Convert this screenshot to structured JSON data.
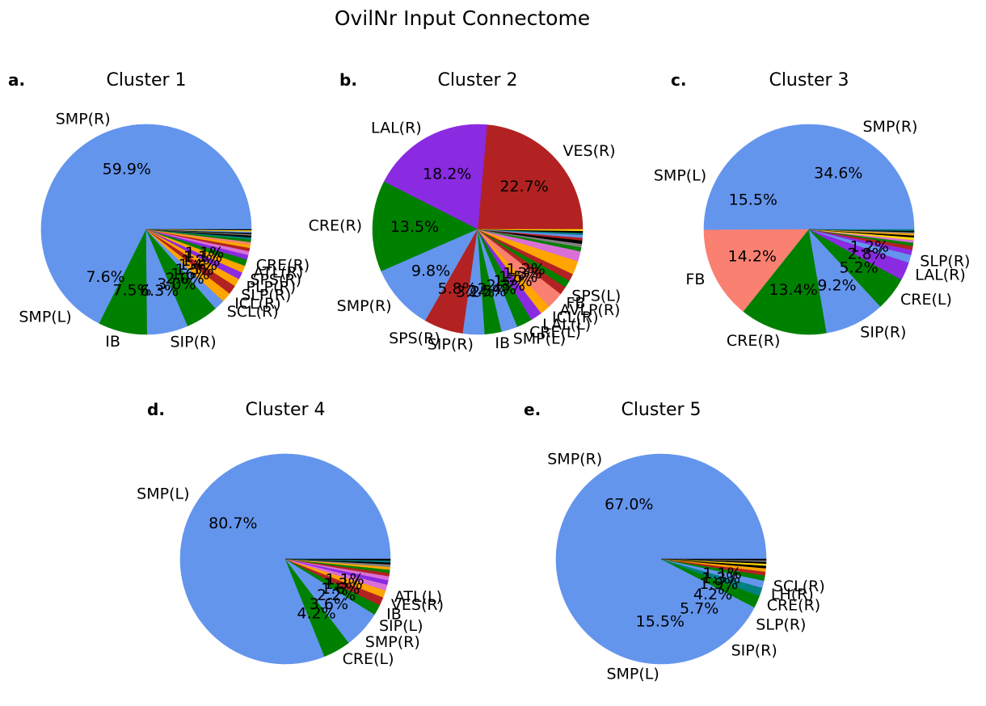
{
  "figure": {
    "title": "OvilNr Input Connectome"
  },
  "chart_data": [
    {
      "type": "pie",
      "panel_label": "a.",
      "title": "Cluster 1",
      "slices": [
        {
          "label": "SMP(R)",
          "value": 59.9,
          "pct_label": "59.9%",
          "color": "#6495ed"
        },
        {
          "label": "SMP(L)",
          "value": 7.6,
          "pct_label": "7.6%",
          "color": "#6495ed"
        },
        {
          "label": "IB",
          "value": 7.5,
          "pct_label": "7.5%",
          "color": "#008000"
        },
        {
          "label": "SIP(R)",
          "value": 6.3,
          "pct_label": "6.3%",
          "color": "#6495ed"
        },
        {
          "label": "",
          "value": 3.0,
          "pct_label": "3.0%",
          "color": "#008000"
        },
        {
          "label": "",
          "value": 2.0,
          "pct_label": "2.0%",
          "color": "#008000"
        },
        {
          "label": "SCL(R)",
          "value": 1.6,
          "pct_label": "1.6%",
          "color": "#6495ed"
        },
        {
          "label": "ICL(R)",
          "value": 1.5,
          "pct_label": "1.5%",
          "color": "#ffa500"
        },
        {
          "label": "SLP(R)",
          "value": 1.4,
          "pct_label": "1.4%",
          "color": "#b22222"
        },
        {
          "label": "PLP(R)",
          "value": 1.2,
          "pct_label": "1.2%",
          "color": "#ffa500"
        },
        {
          "label": "SPS(R)",
          "value": 1.1,
          "pct_label": "1.1%",
          "color": "#8a2be2"
        },
        {
          "label": "ATL(R)",
          "value": 1.1,
          "pct_label": "1.1%",
          "color": "#ffa500"
        },
        {
          "label": "CRE(R)",
          "value": 1.0,
          "pct_label": "",
          "color": "#008000"
        },
        {
          "label": "",
          "value": 0.7,
          "pct_label": "",
          "color": "#8a2be2"
        },
        {
          "label": "",
          "value": 0.6,
          "pct_label": "",
          "color": "#da70d6"
        },
        {
          "label": "",
          "value": 0.5,
          "pct_label": "",
          "color": "#b22222"
        },
        {
          "label": "",
          "value": 0.5,
          "pct_label": "",
          "color": "#ffa500"
        },
        {
          "label": "",
          "value": 0.4,
          "pct_label": "",
          "color": "#fa8072"
        },
        {
          "label": "",
          "value": 0.4,
          "pct_label": "",
          "color": "#008000"
        },
        {
          "label": "",
          "value": 0.3,
          "pct_label": "",
          "color": "#008080"
        },
        {
          "label": "",
          "value": 0.3,
          "pct_label": "",
          "color": "#000000"
        },
        {
          "label": "",
          "value": 0.2,
          "pct_label": "",
          "color": "#808080"
        },
        {
          "label": "",
          "value": 0.2,
          "pct_label": "",
          "color": "#000000"
        },
        {
          "label": "",
          "value": 0.2,
          "pct_label": "",
          "color": "#6495ed"
        },
        {
          "label": "",
          "value": 0.2,
          "pct_label": "",
          "color": "#ffd700"
        },
        {
          "label": "",
          "value": 0.1,
          "pct_label": "",
          "color": "#000000"
        }
      ]
    },
    {
      "type": "pie",
      "panel_label": "b.",
      "title": "Cluster 2",
      "slices": [
        {
          "label": "VES(R)",
          "value": 22.7,
          "pct_label": "22.7%",
          "color": "#b22222"
        },
        {
          "label": "LAL(R)",
          "value": 18.2,
          "pct_label": "18.2%",
          "color": "#8a2be2"
        },
        {
          "label": "CRE(R)",
          "value": 13.5,
          "pct_label": "13.5%",
          "color": "#008000"
        },
        {
          "label": "SMP(R)",
          "value": 9.8,
          "pct_label": "9.8%",
          "color": "#6495ed"
        },
        {
          "label": "SPS(R)",
          "value": 5.8,
          "pct_label": "5.8%",
          "color": "#b22222"
        },
        {
          "label": "SIP(R)",
          "value": 3.2,
          "pct_label": "3.2%",
          "color": "#6495ed"
        },
        {
          "label": "IB",
          "value": 2.5,
          "pct_label": "2.5%",
          "color": "#008000"
        },
        {
          "label": "SMP(L)",
          "value": 2.4,
          "pct_label": "2.4%",
          "color": "#6495ed"
        },
        {
          "label": "CRE(L)",
          "value": 2.3,
          "pct_label": "2.3%",
          "color": "#008000"
        },
        {
          "label": "LAL(L)",
          "value": 1.7,
          "pct_label": "1.7%",
          "color": "#8a2be2"
        },
        {
          "label": "ICL(R)",
          "value": 1.5,
          "pct_label": "1.5%",
          "color": "#ffa500"
        },
        {
          "label": "AVLP(R)",
          "value": 1.3,
          "pct_label": "1.3%",
          "color": "#fa8072"
        },
        {
          "label": "FB",
          "value": 1.2,
          "pct_label": "1.2%",
          "color": "#fa8072"
        },
        {
          "label": "SPS(L)",
          "value": 1.2,
          "pct_label": "",
          "color": "#b22222"
        },
        {
          "label": "",
          "value": 1.1,
          "pct_label": "",
          "color": "#008000"
        },
        {
          "label": "",
          "value": 1.1,
          "pct_label": "",
          "color": "#b22222"
        },
        {
          "label": "",
          "value": 1.0,
          "pct_label": "",
          "color": "#ffa500"
        },
        {
          "label": "",
          "value": 1.0,
          "pct_label": "",
          "color": "#ffa500"
        },
        {
          "label": "",
          "value": 0.8,
          "pct_label": "",
          "color": "#da70d6"
        },
        {
          "label": "",
          "value": 0.7,
          "pct_label": "",
          "color": "#da70d6"
        },
        {
          "label": "",
          "value": 0.6,
          "pct_label": "",
          "color": "#008000"
        },
        {
          "label": "",
          "value": 0.5,
          "pct_label": "",
          "color": "#808080"
        },
        {
          "label": "",
          "value": 0.5,
          "pct_label": "",
          "color": "#000000"
        },
        {
          "label": "",
          "value": 0.4,
          "pct_label": "",
          "color": "#b22222"
        },
        {
          "label": "",
          "value": 0.4,
          "pct_label": "",
          "color": "#6495ed"
        },
        {
          "label": "",
          "value": 0.3,
          "pct_label": "",
          "color": "#008080"
        },
        {
          "label": "",
          "value": 0.3,
          "pct_label": "",
          "color": "#000000"
        },
        {
          "label": "",
          "value": 0.2,
          "pct_label": "",
          "color": "#ffd700"
        }
      ]
    },
    {
      "type": "pie",
      "panel_label": "c.",
      "title": "Cluster 3",
      "slices": [
        {
          "label": "SMP(R)",
          "value": 34.6,
          "pct_label": "34.6%",
          "color": "#6495ed"
        },
        {
          "label": "SMP(L)",
          "value": 15.5,
          "pct_label": "15.5%",
          "color": "#6495ed"
        },
        {
          "label": "FB",
          "value": 14.2,
          "pct_label": "14.2%",
          "color": "#fa8072"
        },
        {
          "label": "CRE(R)",
          "value": 13.4,
          "pct_label": "13.4%",
          "color": "#008000"
        },
        {
          "label": "SIP(R)",
          "value": 9.2,
          "pct_label": "9.2%",
          "color": "#6495ed"
        },
        {
          "label": "CRE(L)",
          "value": 5.2,
          "pct_label": "5.2%",
          "color": "#008000"
        },
        {
          "label": "LAL(R)",
          "value": 2.8,
          "pct_label": "2.8%",
          "color": "#8a2be2"
        },
        {
          "label": "SLP(R)",
          "value": 1.2,
          "pct_label": "1.2%",
          "color": "#6495ed"
        },
        {
          "label": "",
          "value": 0.8,
          "pct_label": "",
          "color": "#8a2be2"
        },
        {
          "label": "",
          "value": 0.6,
          "pct_label": "",
          "color": "#b22222"
        },
        {
          "label": "",
          "value": 0.5,
          "pct_label": "",
          "color": "#008000"
        },
        {
          "label": "",
          "value": 0.4,
          "pct_label": "",
          "color": "#da70d6"
        },
        {
          "label": "",
          "value": 0.4,
          "pct_label": "",
          "color": "#ffd700"
        },
        {
          "label": "",
          "value": 0.3,
          "pct_label": "",
          "color": "#000000"
        },
        {
          "label": "",
          "value": 0.3,
          "pct_label": "",
          "color": "#ffa500"
        },
        {
          "label": "",
          "value": 0.2,
          "pct_label": "",
          "color": "#808080"
        },
        {
          "label": "",
          "value": 0.2,
          "pct_label": "",
          "color": "#000000"
        },
        {
          "label": "",
          "value": 0.2,
          "pct_label": "",
          "color": "#008080"
        }
      ]
    },
    {
      "type": "pie",
      "panel_label": "d.",
      "title": "Cluster 4",
      "slices": [
        {
          "label": "SMP(L)",
          "value": 80.7,
          "pct_label": "80.7%",
          "color": "#6495ed"
        },
        {
          "label": "CRE(L)",
          "value": 4.2,
          "pct_label": "4.2%",
          "color": "#008000"
        },
        {
          "label": "SMP(R)",
          "value": 3.6,
          "pct_label": "3.6%",
          "color": "#6495ed"
        },
        {
          "label": "SIP(L)",
          "value": 2.2,
          "pct_label": "2.2%",
          "color": "#6495ed"
        },
        {
          "label": "IB",
          "value": 1.6,
          "pct_label": "1.6%",
          "color": "#008000"
        },
        {
          "label": "VES(R)",
          "value": 1.3,
          "pct_label": "1.3%",
          "color": "#b22222"
        },
        {
          "label": "ATL(L)",
          "value": 1.1,
          "pct_label": "1.1%",
          "color": "#ffa500"
        },
        {
          "label": "",
          "value": 0.9,
          "pct_label": "",
          "color": "#da70d6"
        },
        {
          "label": "",
          "value": 0.7,
          "pct_label": "",
          "color": "#8a2be2"
        },
        {
          "label": "",
          "value": 0.6,
          "pct_label": "",
          "color": "#da70d6"
        },
        {
          "label": "",
          "value": 0.5,
          "pct_label": "",
          "color": "#b22222"
        },
        {
          "label": "",
          "value": 0.5,
          "pct_label": "",
          "color": "#008000"
        },
        {
          "label": "",
          "value": 0.4,
          "pct_label": "",
          "color": "#ffa500"
        },
        {
          "label": "",
          "value": 0.4,
          "pct_label": "",
          "color": "#808080"
        },
        {
          "label": "",
          "value": 0.3,
          "pct_label": "",
          "color": "#000000"
        },
        {
          "label": "",
          "value": 0.3,
          "pct_label": "",
          "color": "#008080"
        },
        {
          "label": "",
          "value": 0.2,
          "pct_label": "",
          "color": "#000000"
        }
      ]
    },
    {
      "type": "pie",
      "panel_label": "e.",
      "title": "Cluster 5",
      "slices": [
        {
          "label": "SMP(R)",
          "value": 67.0,
          "pct_label": "67.0%",
          "color": "#6495ed"
        },
        {
          "label": "SMP(L)",
          "value": 15.5,
          "pct_label": "15.5%",
          "color": "#6495ed"
        },
        {
          "label": "SIP(R)",
          "value": 5.7,
          "pct_label": "5.7%",
          "color": "#6495ed"
        },
        {
          "label": "SLP(R)",
          "value": 4.2,
          "pct_label": "4.2%",
          "color": "#6495ed"
        },
        {
          "label": "CRE(R)",
          "value": 1.9,
          "pct_label": "1.9%",
          "color": "#008000"
        },
        {
          "label": "LH(R)",
          "value": 1.3,
          "pct_label": "1.3%",
          "color": "#008080"
        },
        {
          "label": "SCL(R)",
          "value": 1.1,
          "pct_label": "1.1%",
          "color": "#6495ed"
        },
        {
          "label": "",
          "value": 0.8,
          "pct_label": "",
          "color": "#008000"
        },
        {
          "label": "",
          "value": 0.6,
          "pct_label": "",
          "color": "#b22222"
        },
        {
          "label": "",
          "value": 0.5,
          "pct_label": "",
          "color": "#ffa500"
        },
        {
          "label": "",
          "value": 0.4,
          "pct_label": "",
          "color": "#000000"
        },
        {
          "label": "",
          "value": 0.3,
          "pct_label": "",
          "color": "#ffd700"
        },
        {
          "label": "",
          "value": 0.3,
          "pct_label": "",
          "color": "#000000"
        },
        {
          "label": "",
          "value": 0.2,
          "pct_label": "",
          "color": "#808080"
        },
        {
          "label": "",
          "value": 0.2,
          "pct_label": "",
          "color": "#000000"
        }
      ]
    }
  ]
}
